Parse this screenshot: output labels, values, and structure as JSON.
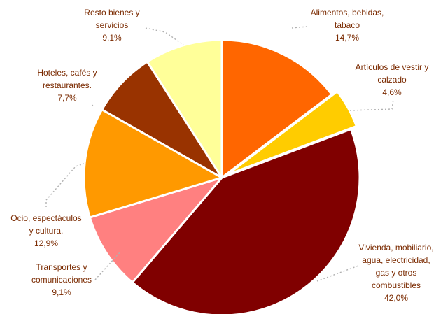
{
  "chart_data": {
    "type": "pie",
    "title": "",
    "slices": [
      {
        "lines": [
          "Alimentos, bebidas,",
          "tabaco",
          "14,7%"
        ],
        "value": 14.7,
        "color": "#FF6600"
      },
      {
        "lines": [
          "Artículos de vestir y",
          "calzado",
          "4,6%"
        ],
        "value": 4.6,
        "color": "#FFCC00"
      },
      {
        "lines": [
          "Vivienda, mobiliario,",
          "agua, electricidad,",
          "gas y otros",
          "combustibles",
          "42,0%"
        ],
        "value": 42.0,
        "color": "#800000"
      },
      {
        "lines": [
          "Transportes y",
          "comunicaciones",
          "9,1%"
        ],
        "value": 9.1,
        "color": "#FF8080"
      },
      {
        "lines": [
          "Ocio, espectáculos",
          "y cultura.",
          "12,9%"
        ],
        "value": 12.9,
        "color": "#FF9900"
      },
      {
        "lines": [
          "Hoteles, cafés y",
          "restaurantes.",
          "7,7%"
        ],
        "value": 7.7,
        "color": "#993300"
      },
      {
        "lines": [
          "Resto bienes y",
          "servicios",
          "9,1%"
        ],
        "value": 9.1,
        "color": "#FFFF99"
      }
    ]
  }
}
